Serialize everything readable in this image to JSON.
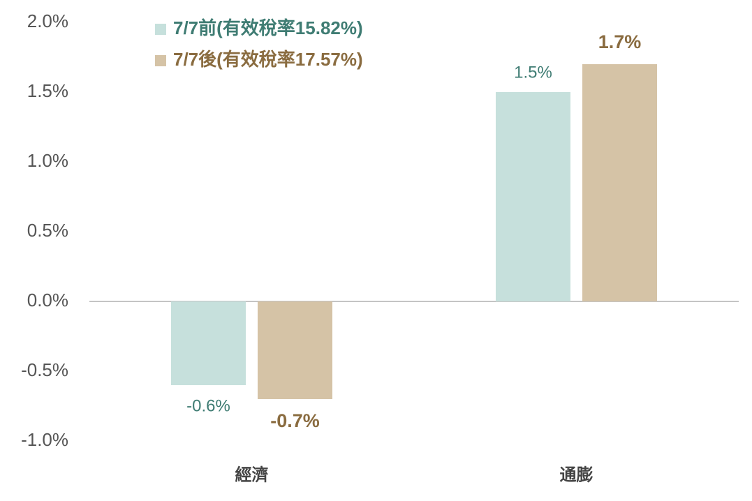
{
  "chart_data": {
    "type": "bar",
    "categories": [
      "經濟",
      "通膨"
    ],
    "series": [
      {
        "name": "7/7前(有效稅率15.82%)",
        "color": "#c6e0dc",
        "label_color": "#3f7c73",
        "values": [
          -0.6,
          1.5
        ],
        "value_labels": [
          "-0.6%",
          "1.5%"
        ]
      },
      {
        "name": "7/7後(有效稅率17.57%)",
        "color": "#d5c3a6",
        "label_color": "#8a6c40",
        "values": [
          -0.7,
          1.7
        ],
        "value_labels": [
          "-0.7%",
          "1.7%"
        ]
      }
    ],
    "ylim": [
      -1.0,
      2.0
    ],
    "yticks": [
      {
        "value": -1.0,
        "label": "-1.0%"
      },
      {
        "value": -0.5,
        "label": "-0.5%"
      },
      {
        "value": 0.0,
        "label": "0.0%"
      },
      {
        "value": 0.5,
        "label": "0.5%"
      },
      {
        "value": 1.0,
        "label": "1.0%"
      },
      {
        "value": 1.5,
        "label": "1.5%"
      },
      {
        "value": 2.0,
        "label": "2.0%"
      }
    ],
    "grid": false,
    "legend": "top-left"
  }
}
